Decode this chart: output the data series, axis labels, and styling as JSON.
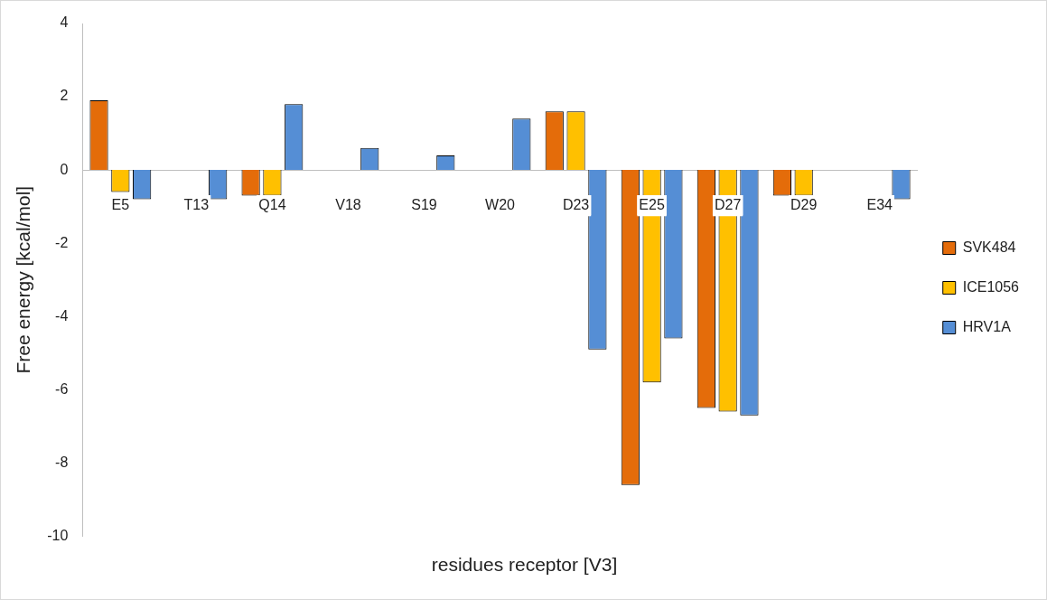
{
  "chart_data": {
    "type": "bar",
    "xlabel": "residues receptor [V3]",
    "ylabel": "Free energy [kcal/mol]",
    "categories": [
      "E5",
      "T13",
      "Q14",
      "V18",
      "S19",
      "W20",
      "D23",
      "E25",
      "D27",
      "D29",
      "E34"
    ],
    "series": [
      {
        "name": "SVK484",
        "color": "#e46c0a",
        "values": [
          1.9,
          null,
          -0.7,
          null,
          null,
          null,
          1.6,
          -8.6,
          -6.5,
          -0.7,
          null
        ]
      },
      {
        "name": "ICE1056",
        "color": "#ffc000",
        "values": [
          -0.6,
          null,
          -0.7,
          null,
          null,
          null,
          1.6,
          -5.8,
          -6.6,
          -0.7,
          null
        ]
      },
      {
        "name": "HRV1A",
        "color": "#558ed5",
        "values": [
          -0.8,
          -0.8,
          1.8,
          0.6,
          0.4,
          1.4,
          -4.9,
          -4.6,
          -6.7,
          null,
          -0.8
        ]
      }
    ],
    "ylim": [
      -10,
      4
    ],
    "yticks": [
      -10,
      -8,
      -6,
      -4,
      -2,
      0,
      2,
      4
    ],
    "grid": false,
    "legend": "right"
  }
}
